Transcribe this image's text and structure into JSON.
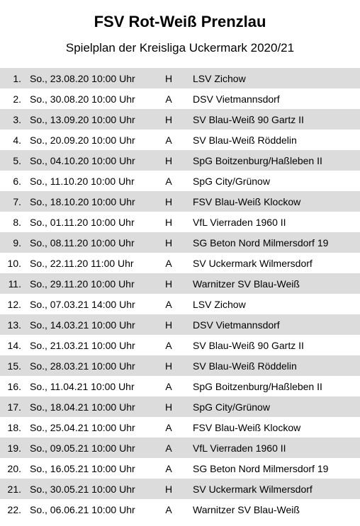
{
  "title": "FSV Rot-Weiß Prenzlau",
  "subtitle": "Spielplan der Kreisliga Uckermark 2020/21",
  "colors": {
    "row_odd_bg": "#dcdcdc",
    "row_even_bg": "#ffffff",
    "text": "#000000",
    "page_bg": "#ffffff"
  },
  "font_sizes": {
    "title": 22,
    "subtitle": 17,
    "row": 14
  },
  "columns": [
    "num",
    "date",
    "ha",
    "opponent"
  ],
  "rows": [
    {
      "num": "1.",
      "date": "So., 23.08.20 10:00 Uhr",
      "ha": "H",
      "opponent": "LSV Zichow"
    },
    {
      "num": "2.",
      "date": "So., 30.08.20 10:00 Uhr",
      "ha": "A",
      "opponent": "DSV Vietmannsdorf"
    },
    {
      "num": "3.",
      "date": "So., 13.09.20 10:00 Uhr",
      "ha": "H",
      "opponent": "SV Blau-Weiß 90 Gartz II"
    },
    {
      "num": "4.",
      "date": "So., 20.09.20 10:00 Uhr",
      "ha": "A",
      "opponent": "SV Blau-Weiß Röddelin"
    },
    {
      "num": "5.",
      "date": "So., 04.10.20 10:00 Uhr",
      "ha": "H",
      "opponent": "SpG Boitzenburg/Haßleben II"
    },
    {
      "num": "6.",
      "date": "So., 11.10.20 10:00 Uhr",
      "ha": "A",
      "opponent": "SpG City/Grünow"
    },
    {
      "num": "7.",
      "date": "So., 18.10.20 10:00 Uhr",
      "ha": "H",
      "opponent": "FSV Blau-Weiß Klockow"
    },
    {
      "num": "8.",
      "date": "So., 01.11.20 10:00 Uhr",
      "ha": "H",
      "opponent": "VfL Vierraden 1960 II"
    },
    {
      "num": "9.",
      "date": "So., 08.11.20 10:00 Uhr",
      "ha": "H",
      "opponent": "SG Beton Nord Milmersdorf 19"
    },
    {
      "num": "10.",
      "date": "So., 22.11.20 11:00 Uhr",
      "ha": "A",
      "opponent": "SV Uckermark Wilmersdorf"
    },
    {
      "num": "11.",
      "date": "So., 29.11.20 10:00 Uhr",
      "ha": "H",
      "opponent": "Warnitzer SV Blau-Weiß"
    },
    {
      "num": "12.",
      "date": "So., 07.03.21 14:00 Uhr",
      "ha": "A",
      "opponent": "LSV Zichow"
    },
    {
      "num": "13.",
      "date": "So., 14.03.21 10:00 Uhr",
      "ha": "H",
      "opponent": "DSV Vietmannsdorf"
    },
    {
      "num": "14.",
      "date": "So., 21.03.21 10:00 Uhr",
      "ha": "A",
      "opponent": "SV Blau-Weiß 90 Gartz II"
    },
    {
      "num": "15.",
      "date": "So., 28.03.21 10:00 Uhr",
      "ha": "H",
      "opponent": "SV Blau-Weiß Röddelin"
    },
    {
      "num": "16.",
      "date": "So., 11.04.21 10:00 Uhr",
      "ha": "A",
      "opponent": "SpG Boitzenburg/Haßleben II"
    },
    {
      "num": "17.",
      "date": "So., 18.04.21 10:00 Uhr",
      "ha": "H",
      "opponent": "SpG City/Grünow"
    },
    {
      "num": "18.",
      "date": "So., 25.04.21 10:00 Uhr",
      "ha": "A",
      "opponent": "FSV Blau-Weiß Klockow"
    },
    {
      "num": "19.",
      "date": "So., 09.05.21 10:00 Uhr",
      "ha": "A",
      "opponent": "VfL Vierraden 1960 II"
    },
    {
      "num": "20.",
      "date": "So., 16.05.21 10:00 Uhr",
      "ha": "A",
      "opponent": "SG Beton Nord Milmersdorf 19"
    },
    {
      "num": "21.",
      "date": "So., 30.05.21 10:00 Uhr",
      "ha": "H",
      "opponent": "SV Uckermark Wilmersdorf"
    },
    {
      "num": "22.",
      "date": "So., 06.06.21 10:00 Uhr",
      "ha": "A",
      "opponent": "Warnitzer SV Blau-Weiß"
    }
  ]
}
